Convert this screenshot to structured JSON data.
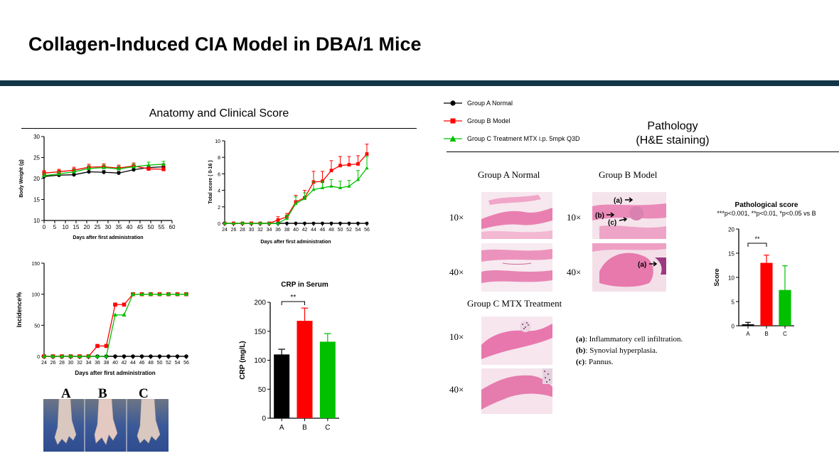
{
  "page": {
    "title": "Collagen-Induced CIA Model in DBA/1 Mice",
    "accent": "#123646"
  },
  "anatomy": {
    "title": "Anatomy and Clinical Score",
    "paw_labels": [
      "A",
      "B",
      "C"
    ]
  },
  "legend": {
    "items": [
      {
        "label": "Group A Normal",
        "color": "#000000",
        "marker": "circle"
      },
      {
        "label": "Group B Model",
        "color": "#ff0000",
        "marker": "square"
      },
      {
        "label": "Group C Treatment MTX i.p. 5mpk Q3D",
        "color": "#00c000",
        "marker": "triangle"
      }
    ]
  },
  "pathology": {
    "title": "Pathology",
    "subtitle": "(H&E staining)",
    "group_a": "Group A Normal",
    "group_b": "Group B Model",
    "group_c": "Group C MTX Treatment",
    "mag_10": "10×",
    "mag_40": "40×",
    "annotations": {
      "a": "(a)",
      "b": "(b)",
      "c": "(c)"
    },
    "notes": [
      {
        "key": "(a)",
        "text": ": Inflammatory cell infiltration."
      },
      {
        "key": "(b)",
        "text": ": Synovial hyperplasia."
      },
      {
        "key": "(c)",
        "text": ": Pannus."
      }
    ]
  },
  "chart_data": [
    {
      "id": "body-weight",
      "type": "line",
      "xlabel": "Days after first administration",
      "ylabel": "Body Weight (g)",
      "xlim": [
        0,
        60
      ],
      "ylim": [
        10,
        30
      ],
      "xticks": [
        0,
        5,
        10,
        15,
        20,
        25,
        30,
        35,
        40,
        45,
        50,
        55,
        60
      ],
      "yticks": [
        10,
        15,
        20,
        25,
        30
      ],
      "x": [
        0,
        7,
        14,
        21,
        28,
        35,
        42,
        49,
        56
      ],
      "series": [
        {
          "name": "Group A Normal",
          "color": "#000000",
          "marker": "circle",
          "values": [
            20.5,
            20.8,
            20.9,
            21.6,
            21.5,
            21.3,
            22.1,
            22.6,
            22.8
          ],
          "err": [
            0.4,
            0.4,
            0.4,
            0.5,
            0.4,
            0.4,
            0.4,
            0.6,
            0.7
          ]
        },
        {
          "name": "Group B Model",
          "color": "#ff0000",
          "marker": "square",
          "values": [
            21.3,
            21.6,
            22.0,
            22.7,
            22.8,
            22.5,
            23.0,
            22.3,
            22.2
          ],
          "err": [
            0.6,
            0.6,
            0.7,
            0.7,
            0.7,
            0.7,
            0.7,
            0.8,
            0.8
          ]
        },
        {
          "name": "Group C Treatment MTX i.p. 5mpk Q3D",
          "color": "#00c000",
          "marker": "triangle",
          "values": [
            20.7,
            21.1,
            21.6,
            22.4,
            22.6,
            22.3,
            22.8,
            23.2,
            23.4
          ],
          "err": [
            0.5,
            0.5,
            0.5,
            0.6,
            0.6,
            0.6,
            0.6,
            0.7,
            0.7
          ]
        }
      ]
    },
    {
      "id": "total-score",
      "type": "line",
      "xlabel": "Days after first administration",
      "ylabel": "Total score ( 0-16 )",
      "xlim": [
        24,
        56
      ],
      "ylim": [
        0,
        10
      ],
      "xticks": [
        24,
        26,
        28,
        30,
        32,
        34,
        36,
        38,
        40,
        42,
        44,
        46,
        48,
        50,
        52,
        54,
        56
      ],
      "yticks": [
        0,
        2,
        4,
        6,
        8,
        10
      ],
      "x": [
        24,
        26,
        28,
        30,
        32,
        34,
        36,
        38,
        40,
        42,
        44,
        46,
        48,
        50,
        52,
        54,
        56
      ],
      "series": [
        {
          "name": "Group A Normal",
          "color": "#000000",
          "marker": "circle",
          "values": [
            0,
            0,
            0,
            0,
            0,
            0,
            0,
            0,
            0,
            0,
            0,
            0,
            0,
            0,
            0,
            0,
            0
          ],
          "err": [
            0,
            0,
            0,
            0,
            0,
            0,
            0,
            0,
            0,
            0,
            0,
            0,
            0,
            0,
            0,
            0,
            0
          ]
        },
        {
          "name": "Group B Model",
          "color": "#ff0000",
          "marker": "square",
          "values": [
            0,
            0,
            0,
            0,
            0,
            0,
            0.4,
            0.8,
            2.6,
            3.1,
            5.0,
            5.1,
            6.4,
            7.0,
            7.1,
            7.2,
            8.4
          ],
          "err": [
            0,
            0,
            0,
            0,
            0,
            0,
            0.4,
            0.4,
            0.8,
            0.9,
            1.3,
            1.2,
            1.2,
            1.1,
            1.0,
            1.0,
            1.2
          ]
        },
        {
          "name": "Group C Treatment MTX i.p. 5mpk Q3D",
          "color": "#00c000",
          "marker": "triangle",
          "values": [
            0,
            0,
            0,
            0,
            0,
            0,
            0,
            0.6,
            2.4,
            3.0,
            4.1,
            4.3,
            4.5,
            4.3,
            4.5,
            5.3,
            6.7
          ],
          "err": [
            0,
            0,
            0,
            0,
            0,
            0,
            0,
            0.4,
            0.8,
            0.7,
            0.9,
            0.8,
            0.8,
            0.8,
            0.7,
            1.1,
            1.4
          ]
        }
      ]
    },
    {
      "id": "incidence",
      "type": "line",
      "xlabel": "Days after first administration",
      "ylabel": "Incidence%",
      "xlim": [
        24,
        56
      ],
      "ylim": [
        0,
        150
      ],
      "xticks": [
        24,
        26,
        28,
        30,
        32,
        34,
        36,
        38,
        40,
        42,
        44,
        46,
        48,
        50,
        52,
        54,
        56
      ],
      "yticks": [
        0,
        50,
        100,
        150
      ],
      "x": [
        24,
        26,
        28,
        30,
        32,
        34,
        36,
        38,
        40,
        42,
        44,
        46,
        48,
        50,
        52,
        54,
        56
      ],
      "series": [
        {
          "name": "Group A Normal",
          "color": "#000000",
          "marker": "circle",
          "values": [
            0,
            0,
            0,
            0,
            0,
            0,
            0,
            0,
            0,
            0,
            0,
            0,
            0,
            0,
            0,
            0,
            0
          ]
        },
        {
          "name": "Group B Model",
          "color": "#ff0000",
          "marker": "square",
          "values": [
            0,
            0,
            0,
            0,
            0,
            0,
            16.7,
            16.7,
            83.3,
            83.3,
            100,
            100,
            100,
            100,
            100,
            100,
            100
          ]
        },
        {
          "name": "Group C Treatment MTX i.p. 5mpk Q3D",
          "color": "#00c000",
          "marker": "triangle",
          "values": [
            0,
            0,
            0,
            0,
            0,
            0,
            0,
            0,
            66.7,
            66.7,
            100,
            100,
            100,
            100,
            100,
            100,
            100
          ]
        }
      ]
    },
    {
      "id": "crp",
      "type": "bar",
      "title": "CRP in Serum",
      "ylabel": "CRP (mg/L)",
      "categories": [
        "A",
        "B",
        "C"
      ],
      "values": [
        110,
        168,
        132
      ],
      "err": [
        9,
        22,
        14
      ],
      "colors": [
        "#000000",
        "#ff0000",
        "#00c000"
      ],
      "ylim": [
        0,
        200
      ],
      "yticks": [
        0,
        50,
        100,
        150,
        200
      ],
      "significance": {
        "between": [
          "A",
          "B"
        ],
        "label": "**"
      }
    },
    {
      "id": "pathological-score",
      "type": "bar",
      "title": "Pathological score",
      "subtitle": "***p<0.001, **p<0.01, *p<0.05 vs B",
      "ylabel": "Score",
      "categories": [
        "A",
        "B",
        "C"
      ],
      "values": [
        0.3,
        13.0,
        7.4
      ],
      "err": [
        0.4,
        1.6,
        5.0
      ],
      "colors": [
        "#000000",
        "#ff0000",
        "#00c000"
      ],
      "ylim": [
        0,
        20
      ],
      "yticks": [
        0,
        5,
        10,
        15,
        20
      ],
      "significance": {
        "between": [
          "A",
          "B"
        ],
        "label": "**"
      }
    }
  ]
}
